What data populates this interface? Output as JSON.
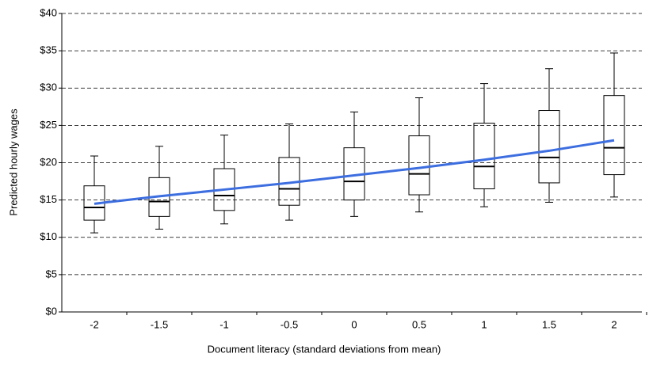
{
  "chart_data": {
    "type": "box",
    "x_label": "Document literacy (standard deviations from mean)",
    "y_label": "Predicted hourly wages",
    "categories": [
      "-2",
      "-1.5",
      "-1",
      "-0.5",
      "0",
      "0.5",
      "1",
      "1.5",
      "2"
    ],
    "boxes": {
      "color": "#000000",
      "min": [
        10.6,
        11.1,
        11.8,
        12.3,
        12.8,
        13.4,
        14.1,
        14.7,
        15.4
      ],
      "q1": [
        12.3,
        12.8,
        13.6,
        14.3,
        15.0,
        15.7,
        16.5,
        17.3,
        18.4
      ],
      "median": [
        14.0,
        14.8,
        15.6,
        16.5,
        17.5,
        18.5,
        19.5,
        20.7,
        22.0
      ],
      "q3": [
        16.9,
        18.0,
        19.2,
        20.7,
        22.0,
        23.6,
        25.3,
        27.0,
        29.0
      ],
      "max": [
        20.9,
        22.2,
        23.7,
        25.2,
        26.8,
        28.7,
        30.6,
        32.6,
        34.7
      ]
    },
    "trend": {
      "color": "#3d6ee0",
      "values": [
        14.5,
        15.5,
        16.4,
        17.3,
        18.3,
        19.3,
        20.4,
        21.6,
        23.0
      ]
    },
    "ylim": [
      0,
      40
    ],
    "yticks": [
      {
        "value": 0,
        "label": "$0"
      },
      {
        "value": 5,
        "label": "$5"
      },
      {
        "value": 10,
        "label": "$10"
      },
      {
        "value": 15,
        "label": "$15"
      },
      {
        "value": 20,
        "label": "$20"
      },
      {
        "value": 25,
        "label": "$25"
      },
      {
        "value": 30,
        "label": "$30"
      },
      {
        "value": 35,
        "label": "$35"
      },
      {
        "value": 40,
        "label": "$40"
      }
    ],
    "grid": true
  }
}
